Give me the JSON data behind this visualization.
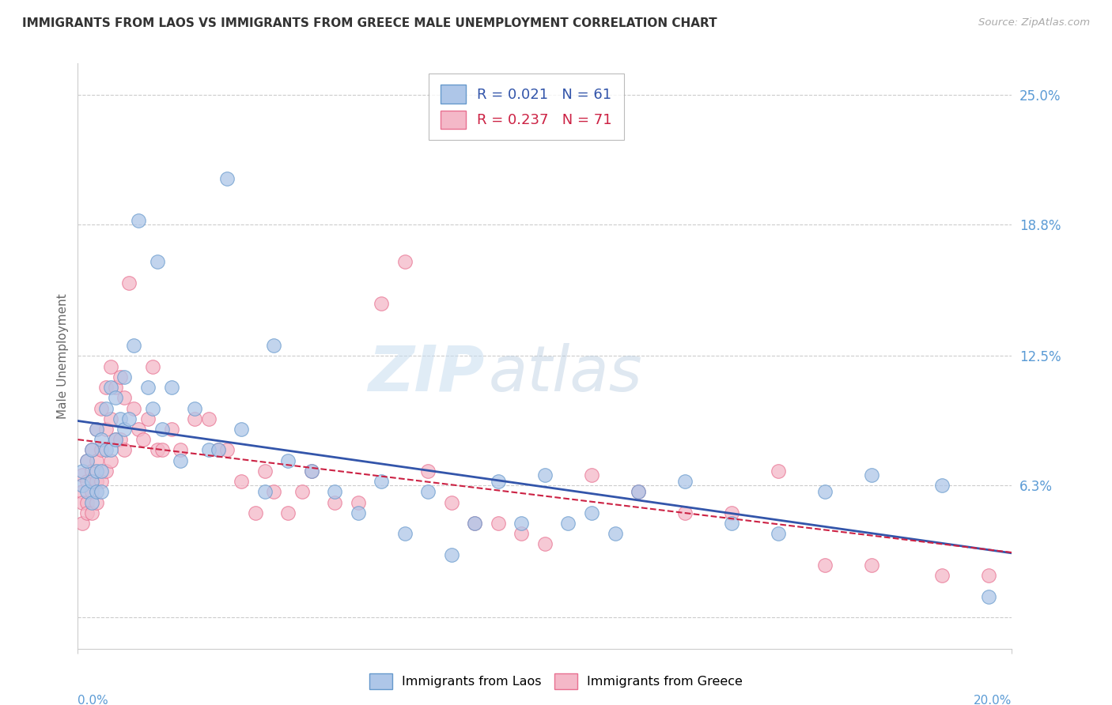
{
  "title": "IMMIGRANTS FROM LAOS VS IMMIGRANTS FROM GREECE MALE UNEMPLOYMENT CORRELATION CHART",
  "source": "Source: ZipAtlas.com",
  "ylabel": "Male Unemployment",
  "y_ticks": [
    0.0,
    0.063,
    0.125,
    0.188,
    0.25
  ],
  "y_tick_labels": [
    "",
    "6.3%",
    "12.5%",
    "18.8%",
    "25.0%"
  ],
  "x_min": 0.0,
  "x_max": 0.2,
  "y_min": -0.015,
  "y_max": 0.265,
  "laos_color": "#aec6e8",
  "laos_edge_color": "#6699cc",
  "greece_color": "#f4b8c8",
  "greece_edge_color": "#e87090",
  "trend_laos_color": "#3355aa",
  "trend_greece_color": "#cc2244",
  "R_laos": 0.021,
  "N_laos": 61,
  "R_greece": 0.237,
  "N_greece": 71,
  "laos_x": [
    0.001,
    0.001,
    0.002,
    0.002,
    0.003,
    0.003,
    0.003,
    0.004,
    0.004,
    0.004,
    0.005,
    0.005,
    0.005,
    0.006,
    0.006,
    0.007,
    0.007,
    0.008,
    0.008,
    0.009,
    0.01,
    0.01,
    0.011,
    0.012,
    0.013,
    0.015,
    0.016,
    0.017,
    0.018,
    0.02,
    0.022,
    0.025,
    0.028,
    0.03,
    0.032,
    0.035,
    0.04,
    0.042,
    0.045,
    0.05,
    0.055,
    0.06,
    0.065,
    0.07,
    0.075,
    0.08,
    0.085,
    0.09,
    0.095,
    0.1,
    0.105,
    0.11,
    0.115,
    0.12,
    0.13,
    0.14,
    0.15,
    0.16,
    0.17,
    0.185,
    0.195
  ],
  "laos_y": [
    0.07,
    0.063,
    0.075,
    0.06,
    0.08,
    0.065,
    0.055,
    0.09,
    0.07,
    0.06,
    0.085,
    0.07,
    0.06,
    0.1,
    0.08,
    0.11,
    0.08,
    0.105,
    0.085,
    0.095,
    0.115,
    0.09,
    0.095,
    0.13,
    0.19,
    0.11,
    0.1,
    0.17,
    0.09,
    0.11,
    0.075,
    0.1,
    0.08,
    0.08,
    0.21,
    0.09,
    0.06,
    0.13,
    0.075,
    0.07,
    0.06,
    0.05,
    0.065,
    0.04,
    0.06,
    0.03,
    0.045,
    0.065,
    0.045,
    0.068,
    0.045,
    0.05,
    0.04,
    0.06,
    0.065,
    0.045,
    0.04,
    0.06,
    0.068,
    0.063,
    0.01
  ],
  "greece_x": [
    0.001,
    0.001,
    0.001,
    0.001,
    0.002,
    0.002,
    0.002,
    0.002,
    0.003,
    0.003,
    0.003,
    0.003,
    0.004,
    0.004,
    0.004,
    0.004,
    0.005,
    0.005,
    0.005,
    0.006,
    0.006,
    0.006,
    0.007,
    0.007,
    0.007,
    0.008,
    0.008,
    0.009,
    0.009,
    0.01,
    0.01,
    0.011,
    0.012,
    0.013,
    0.014,
    0.015,
    0.016,
    0.017,
    0.018,
    0.02,
    0.022,
    0.025,
    0.028,
    0.03,
    0.032,
    0.035,
    0.038,
    0.04,
    0.042,
    0.045,
    0.048,
    0.05,
    0.055,
    0.06,
    0.065,
    0.07,
    0.075,
    0.08,
    0.085,
    0.09,
    0.095,
    0.1,
    0.11,
    0.12,
    0.13,
    0.14,
    0.15,
    0.16,
    0.17,
    0.185,
    0.195
  ],
  "greece_y": [
    0.068,
    0.06,
    0.055,
    0.045,
    0.075,
    0.065,
    0.055,
    0.05,
    0.08,
    0.07,
    0.06,
    0.05,
    0.09,
    0.075,
    0.065,
    0.055,
    0.1,
    0.08,
    0.065,
    0.11,
    0.09,
    0.07,
    0.12,
    0.095,
    0.075,
    0.11,
    0.085,
    0.115,
    0.085,
    0.105,
    0.08,
    0.16,
    0.1,
    0.09,
    0.085,
    0.095,
    0.12,
    0.08,
    0.08,
    0.09,
    0.08,
    0.095,
    0.095,
    0.08,
    0.08,
    0.065,
    0.05,
    0.07,
    0.06,
    0.05,
    0.06,
    0.07,
    0.055,
    0.055,
    0.15,
    0.17,
    0.07,
    0.055,
    0.045,
    0.045,
    0.04,
    0.035,
    0.068,
    0.06,
    0.05,
    0.05,
    0.07,
    0.025,
    0.025,
    0.02,
    0.02
  ],
  "watermark_zip": "ZIP",
  "watermark_atlas": "atlas",
  "background_color": "#ffffff",
  "grid_color": "#cccccc",
  "axis_label_color": "#5b9bd5",
  "ylabel_color": "#666666",
  "title_color": "#333333",
  "source_color": "#aaaaaa"
}
